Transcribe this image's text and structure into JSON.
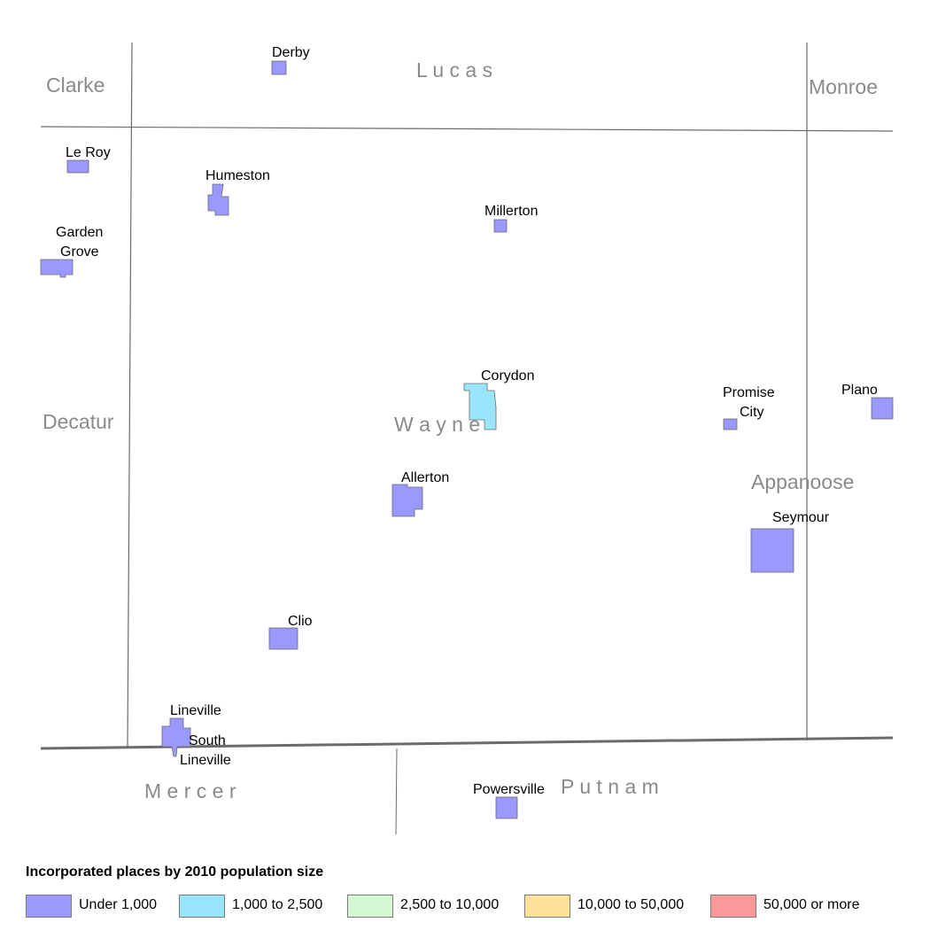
{
  "colors": {
    "under_1000": "#9999ff",
    "r1000_2500": "#99e5fb",
    "r2500_10000": "#d3f8d3",
    "r10000_50000": "#fde29a",
    "over_50000": "#fa9999",
    "boundary": "#6b6b6b",
    "county_label": "#8a8a8a"
  },
  "counties": {
    "clarke": "Clarke",
    "lucas": "L u c a s",
    "monroe": "Monroe",
    "decatur": "Decatur",
    "wayne": "W a y n e",
    "appanoose": "Appanoose",
    "mercer": "M e r c e r",
    "putnam": "P u t n a m"
  },
  "places": {
    "derby": "Derby",
    "le_roy": "Le Roy",
    "humeston": "Humeston",
    "millerton": "Millerton",
    "garden": "Garden",
    "grove": "Grove",
    "corydon": "Corydon",
    "promise": "Promise",
    "city": "City",
    "plano": "Plano",
    "allerton": "Allerton",
    "seymour": "Seymour",
    "clio": "Clio",
    "lineville": "Lineville",
    "south": "South",
    "south_lineville": "Lineville",
    "powersville": "Powersville"
  },
  "legend": {
    "title": "Incorporated places by 2010 population size",
    "items": [
      {
        "label": "Under 1,000",
        "color": "#9999ff"
      },
      {
        "label": "1,000 to 2,500",
        "color": "#99e5fb"
      },
      {
        "label": "2,500 to 10,000",
        "color": "#d3f8d3"
      },
      {
        "label": "10,000 to 50,000",
        "color": "#fde29a"
      },
      {
        "label": "50,000 or more",
        "color": "#fa9999"
      }
    ]
  }
}
